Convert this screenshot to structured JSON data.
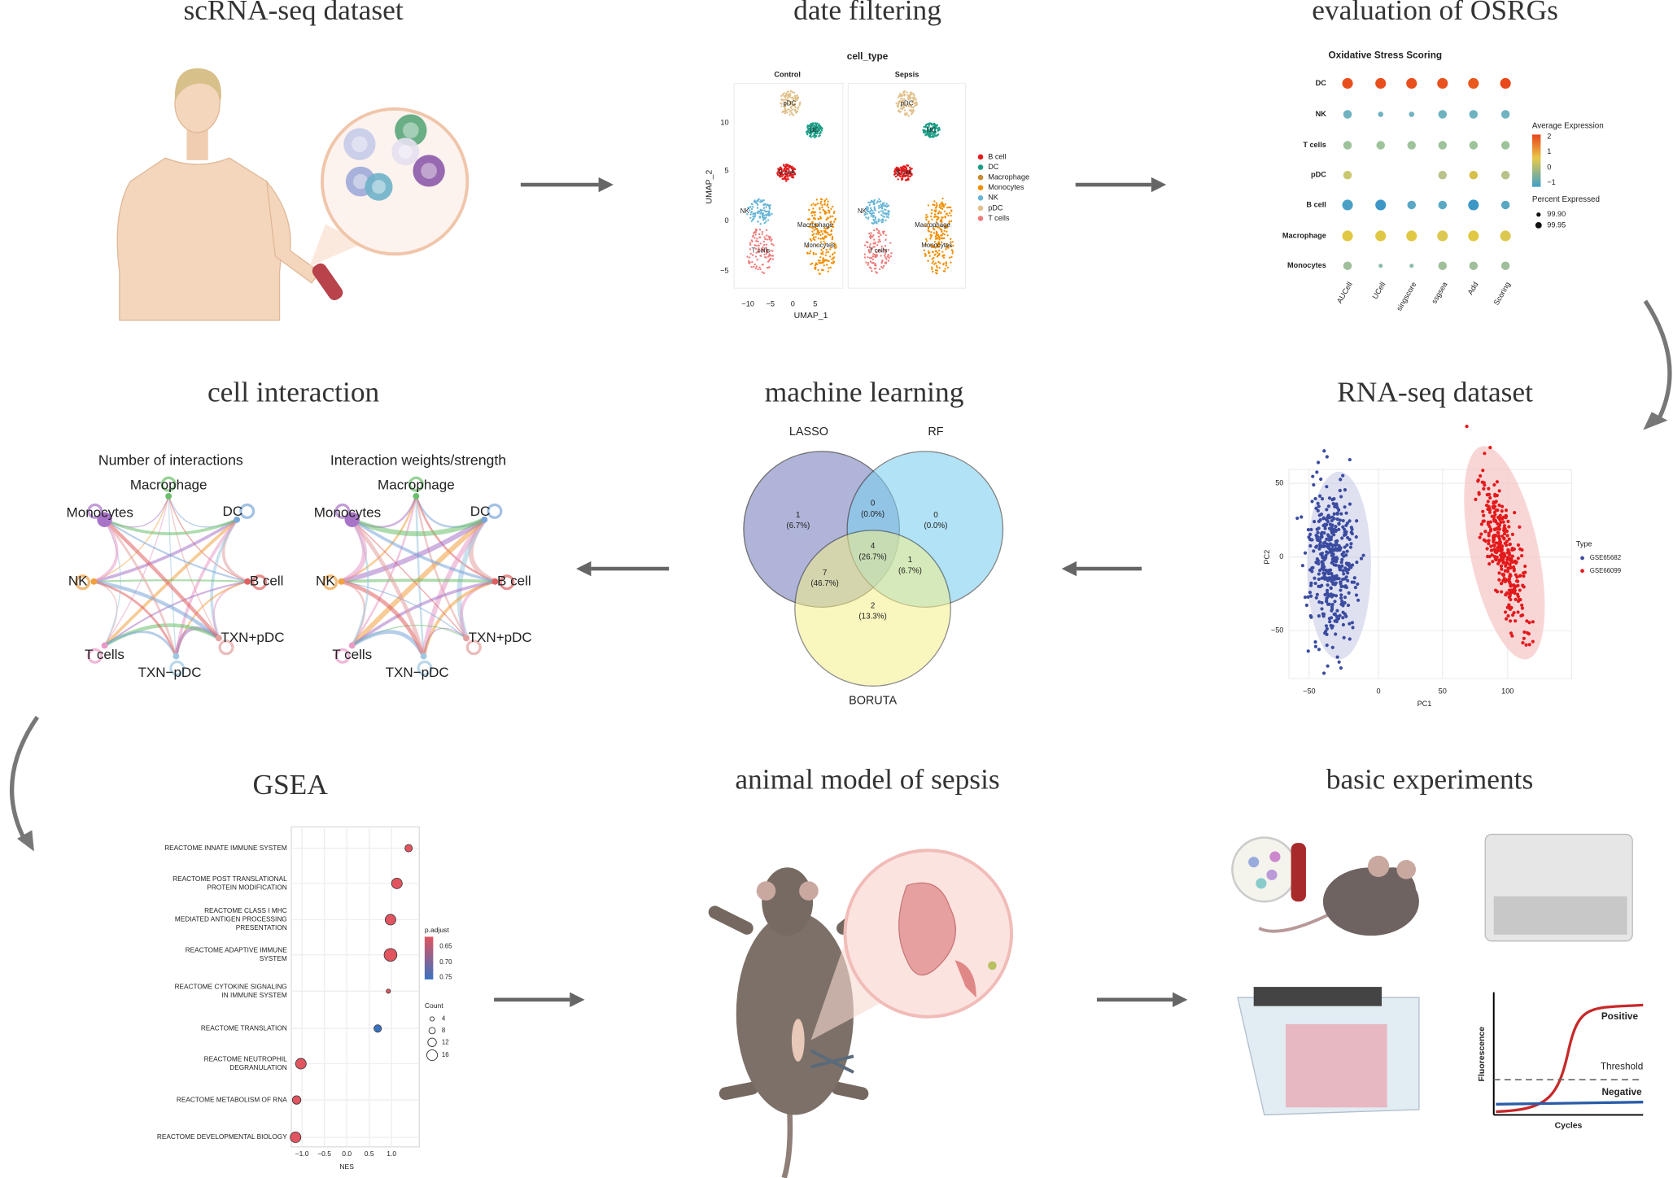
{
  "panels": [
    {
      "title": "scRNA-seq dataset"
    },
    {
      "title": "date filtering"
    },
    {
      "title": "evaluation of OSRGs"
    },
    {
      "title": "cell interaction"
    },
    {
      "title": "machine learning"
    },
    {
      "title": "RNA-seq dataset"
    },
    {
      "title": "GSEA"
    },
    {
      "title": "animal model of sepsis"
    },
    {
      "title": "basic experiments"
    }
  ],
  "umap": {
    "title": "cell_type",
    "groups": [
      "Control",
      "Sepsis"
    ],
    "clusters": [
      "pDC",
      "DC",
      "B cell",
      "NK",
      "T cells",
      "Macrophage",
      "Monocytes"
    ],
    "legend": [
      "B cell",
      "DC",
      "Macrophage",
      "Monocytes",
      "NK",
      "pDC",
      "T cells"
    ],
    "xlabel": "UMAP_1",
    "ylabel": "UMAP_2",
    "xticks": [
      "−10",
      "−5",
      "0",
      "5"
    ],
    "yticks": [
      "10",
      "5",
      "0",
      "−5"
    ]
  },
  "dotplot": {
    "title": "Oxidative Stress Scoring",
    "rows": [
      "DC",
      "NK",
      "T cells",
      "pDC",
      "B cell",
      "Macrophage",
      "Monocytes"
    ],
    "cols": [
      "AUCell",
      "UCell",
      "singscore",
      "ssgsea",
      "Add",
      "Scoring"
    ],
    "color_title": "Average Expression",
    "color_labels": [
      "2",
      "1",
      "0",
      "−1"
    ],
    "size_title": "Percent Expressed",
    "size_labels": [
      "99.90",
      "99.95"
    ]
  },
  "interaction": {
    "titles": [
      "Number of interactions",
      "Interaction weights/strength"
    ],
    "nodes": [
      "Macrophage",
      "DC",
      "B cell",
      "TXN+pDC",
      "TXN−pDC",
      "T cells",
      "NK",
      "Monocytes"
    ]
  },
  "venn": {
    "sets": [
      "LASSO",
      "RF",
      "BORUTA"
    ],
    "regions": [
      {
        "count": "1",
        "pct": "(6.7%)"
      },
      {
        "count": "0",
        "pct": "(0.0%)"
      },
      {
        "count": "0",
        "pct": "(0.0%)"
      },
      {
        "count": "4",
        "pct": "(26.7%)"
      },
      {
        "count": "7",
        "pct": "(46.7%)"
      },
      {
        "count": "1",
        "pct": "(6.7%)"
      },
      {
        "count": "2",
        "pct": "(13.3%)"
      }
    ]
  },
  "pca": {
    "xlabel": "PC1",
    "ylabel": "PC2",
    "xticks": [
      "−50",
      "0",
      "50",
      "100"
    ],
    "yticks": [
      "50",
      "0",
      "−50"
    ],
    "legend_title": "Type",
    "groups": [
      "GSE65682",
      "GSE66099"
    ]
  },
  "gsea": {
    "terms": [
      [
        "REACTOME INNATE IMMUNE SYSTEM"
      ],
      [
        "REACTOME POST TRANSLATIONAL",
        "PROTEIN MODIFICATION"
      ],
      [
        "REACTOME CLASS I MHC",
        "MEDIATED ANTIGEN PROCESSING",
        "PRESENTATION"
      ],
      [
        "REACTOME ADAPTIVE IMMUNE",
        "SYSTEM"
      ],
      [
        "REACTOME CYTOKINE SIGNALING",
        "IN IMMUNE SYSTEM"
      ],
      [
        "REACTOME TRANSLATION"
      ],
      [
        "REACTOME NEUTROPHIL",
        "DEGRANULATION"
      ],
      [
        "REACTOME METABOLISM OF RNA"
      ],
      [
        "REACTOME DEVELOPMENTAL BIOLOGY"
      ]
    ],
    "xlabel": "NES",
    "xticks": [
      "−1.0",
      "−0.5",
      "0.0",
      "0.5",
      "1.0"
    ],
    "color_title": "p.adjust",
    "color_labels": [
      "0.65",
      "0.70",
      "0.75"
    ],
    "size_title": "Count",
    "size_labels": [
      "4",
      "8",
      "12",
      "16"
    ]
  },
  "qpcr": {
    "positive": "Positive",
    "threshold": "Threshold",
    "negative": "Negative",
    "ylabel": "Fluorescence",
    "xlabel": "Cycles"
  }
}
